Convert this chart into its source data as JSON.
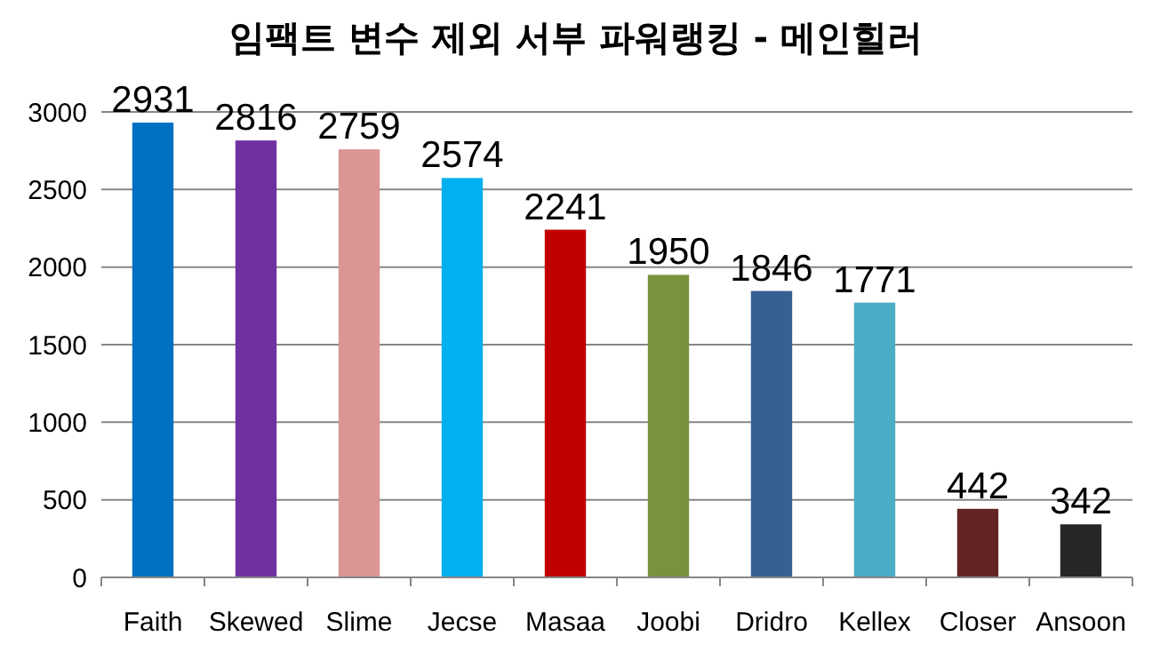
{
  "chart_data": {
    "type": "bar",
    "title": "임팩트 변수 제외 서부 파워랭킹 - 메인힐러",
    "categories": [
      "Faith",
      "Skewed",
      "Slime",
      "Jecse",
      "Masaa",
      "Joobi",
      "Dridro",
      "Kellex",
      "Closer",
      "Ansoon"
    ],
    "values": [
      2931,
      2816,
      2759,
      2574,
      2241,
      1950,
      1846,
      1771,
      442,
      342
    ],
    "colors": [
      "#0070c0",
      "#7030a0",
      "#da9694",
      "#00b0f0",
      "#c00000",
      "#77933c",
      "#376092",
      "#4bacc6",
      "#632523",
      "#262626"
    ],
    "ylim": [
      0,
      3000
    ],
    "yticks": [
      0,
      500,
      1000,
      1500,
      2000,
      2500,
      3000
    ],
    "grid": "y",
    "data_labels": true
  }
}
